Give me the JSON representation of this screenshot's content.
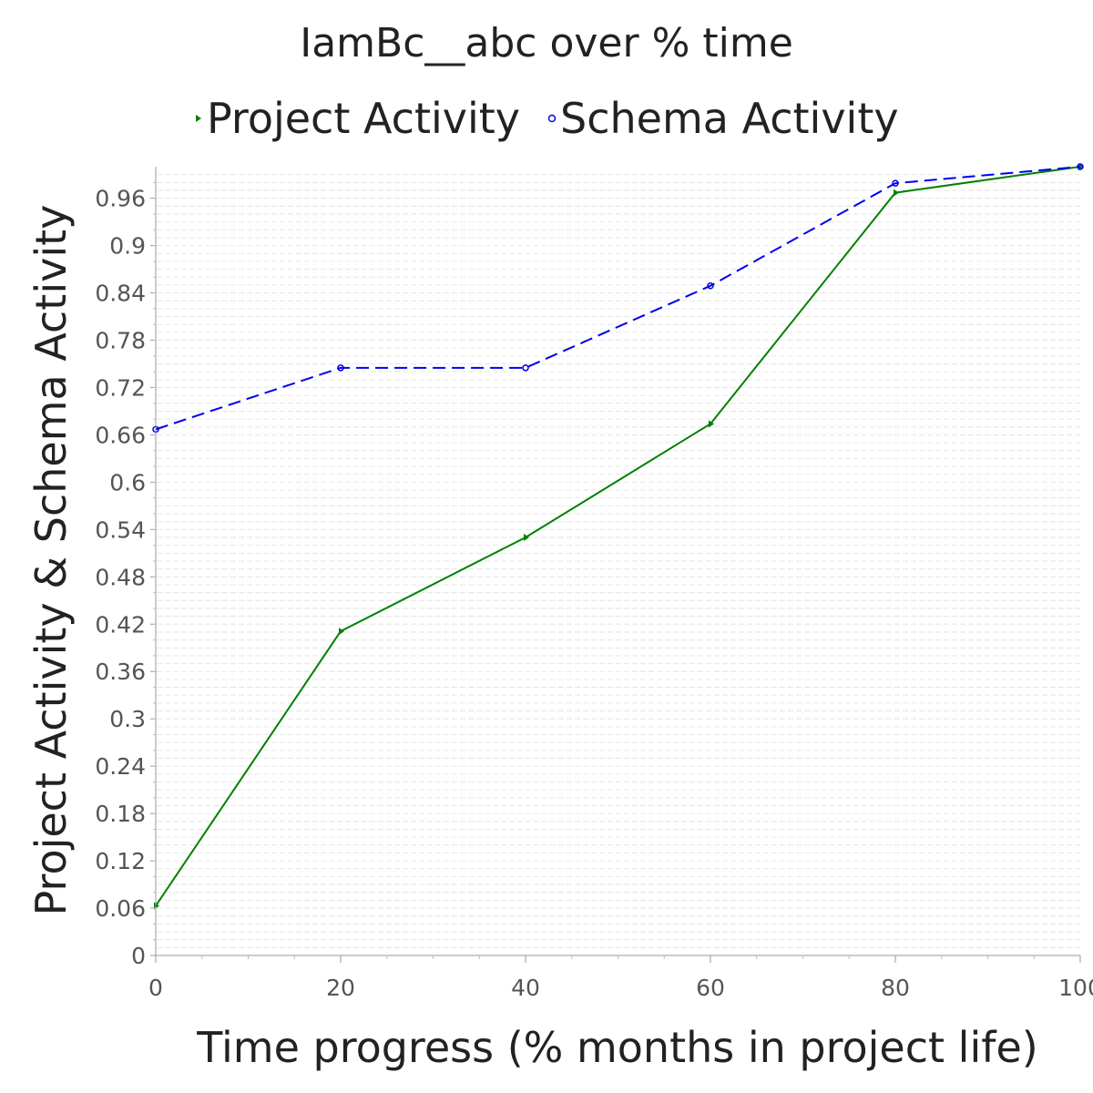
{
  "chart_data": {
    "type": "line",
    "title": "IamBc__abc over % time",
    "xlabel": "Time progress (% months in project life)",
    "ylabel": "Project Activity & Schema Activity",
    "xlim": [
      0,
      100
    ],
    "ylim": [
      0,
      1
    ],
    "x_ticks": [
      "0",
      "20",
      "40",
      "60",
      "80",
      "100"
    ],
    "y_ticks": [
      "0",
      "0.06",
      "0.12",
      "0.18",
      "0.24",
      "0.3",
      "0.36",
      "0.42",
      "0.48",
      "0.54",
      "0.6",
      "0.66",
      "0.72",
      "0.78",
      "0.84",
      "0.9",
      "0.96"
    ],
    "legend_position": "top",
    "grid": true,
    "series": [
      {
        "name": "Project Activity",
        "color": "#008000",
        "marker": "triangle-right",
        "line_style": "solid",
        "x": [
          0,
          20,
          40,
          60,
          80,
          100
        ],
        "y": [
          0.063,
          0.411,
          0.53,
          0.674,
          0.967,
          1.0
        ]
      },
      {
        "name": "Schema Activity",
        "color": "#0000ee",
        "marker": "circle",
        "line_style": "dashed",
        "x": [
          0,
          20,
          40,
          60,
          80,
          100
        ],
        "y": [
          0.667,
          0.745,
          0.745,
          0.849,
          0.979,
          1.0
        ]
      }
    ]
  }
}
